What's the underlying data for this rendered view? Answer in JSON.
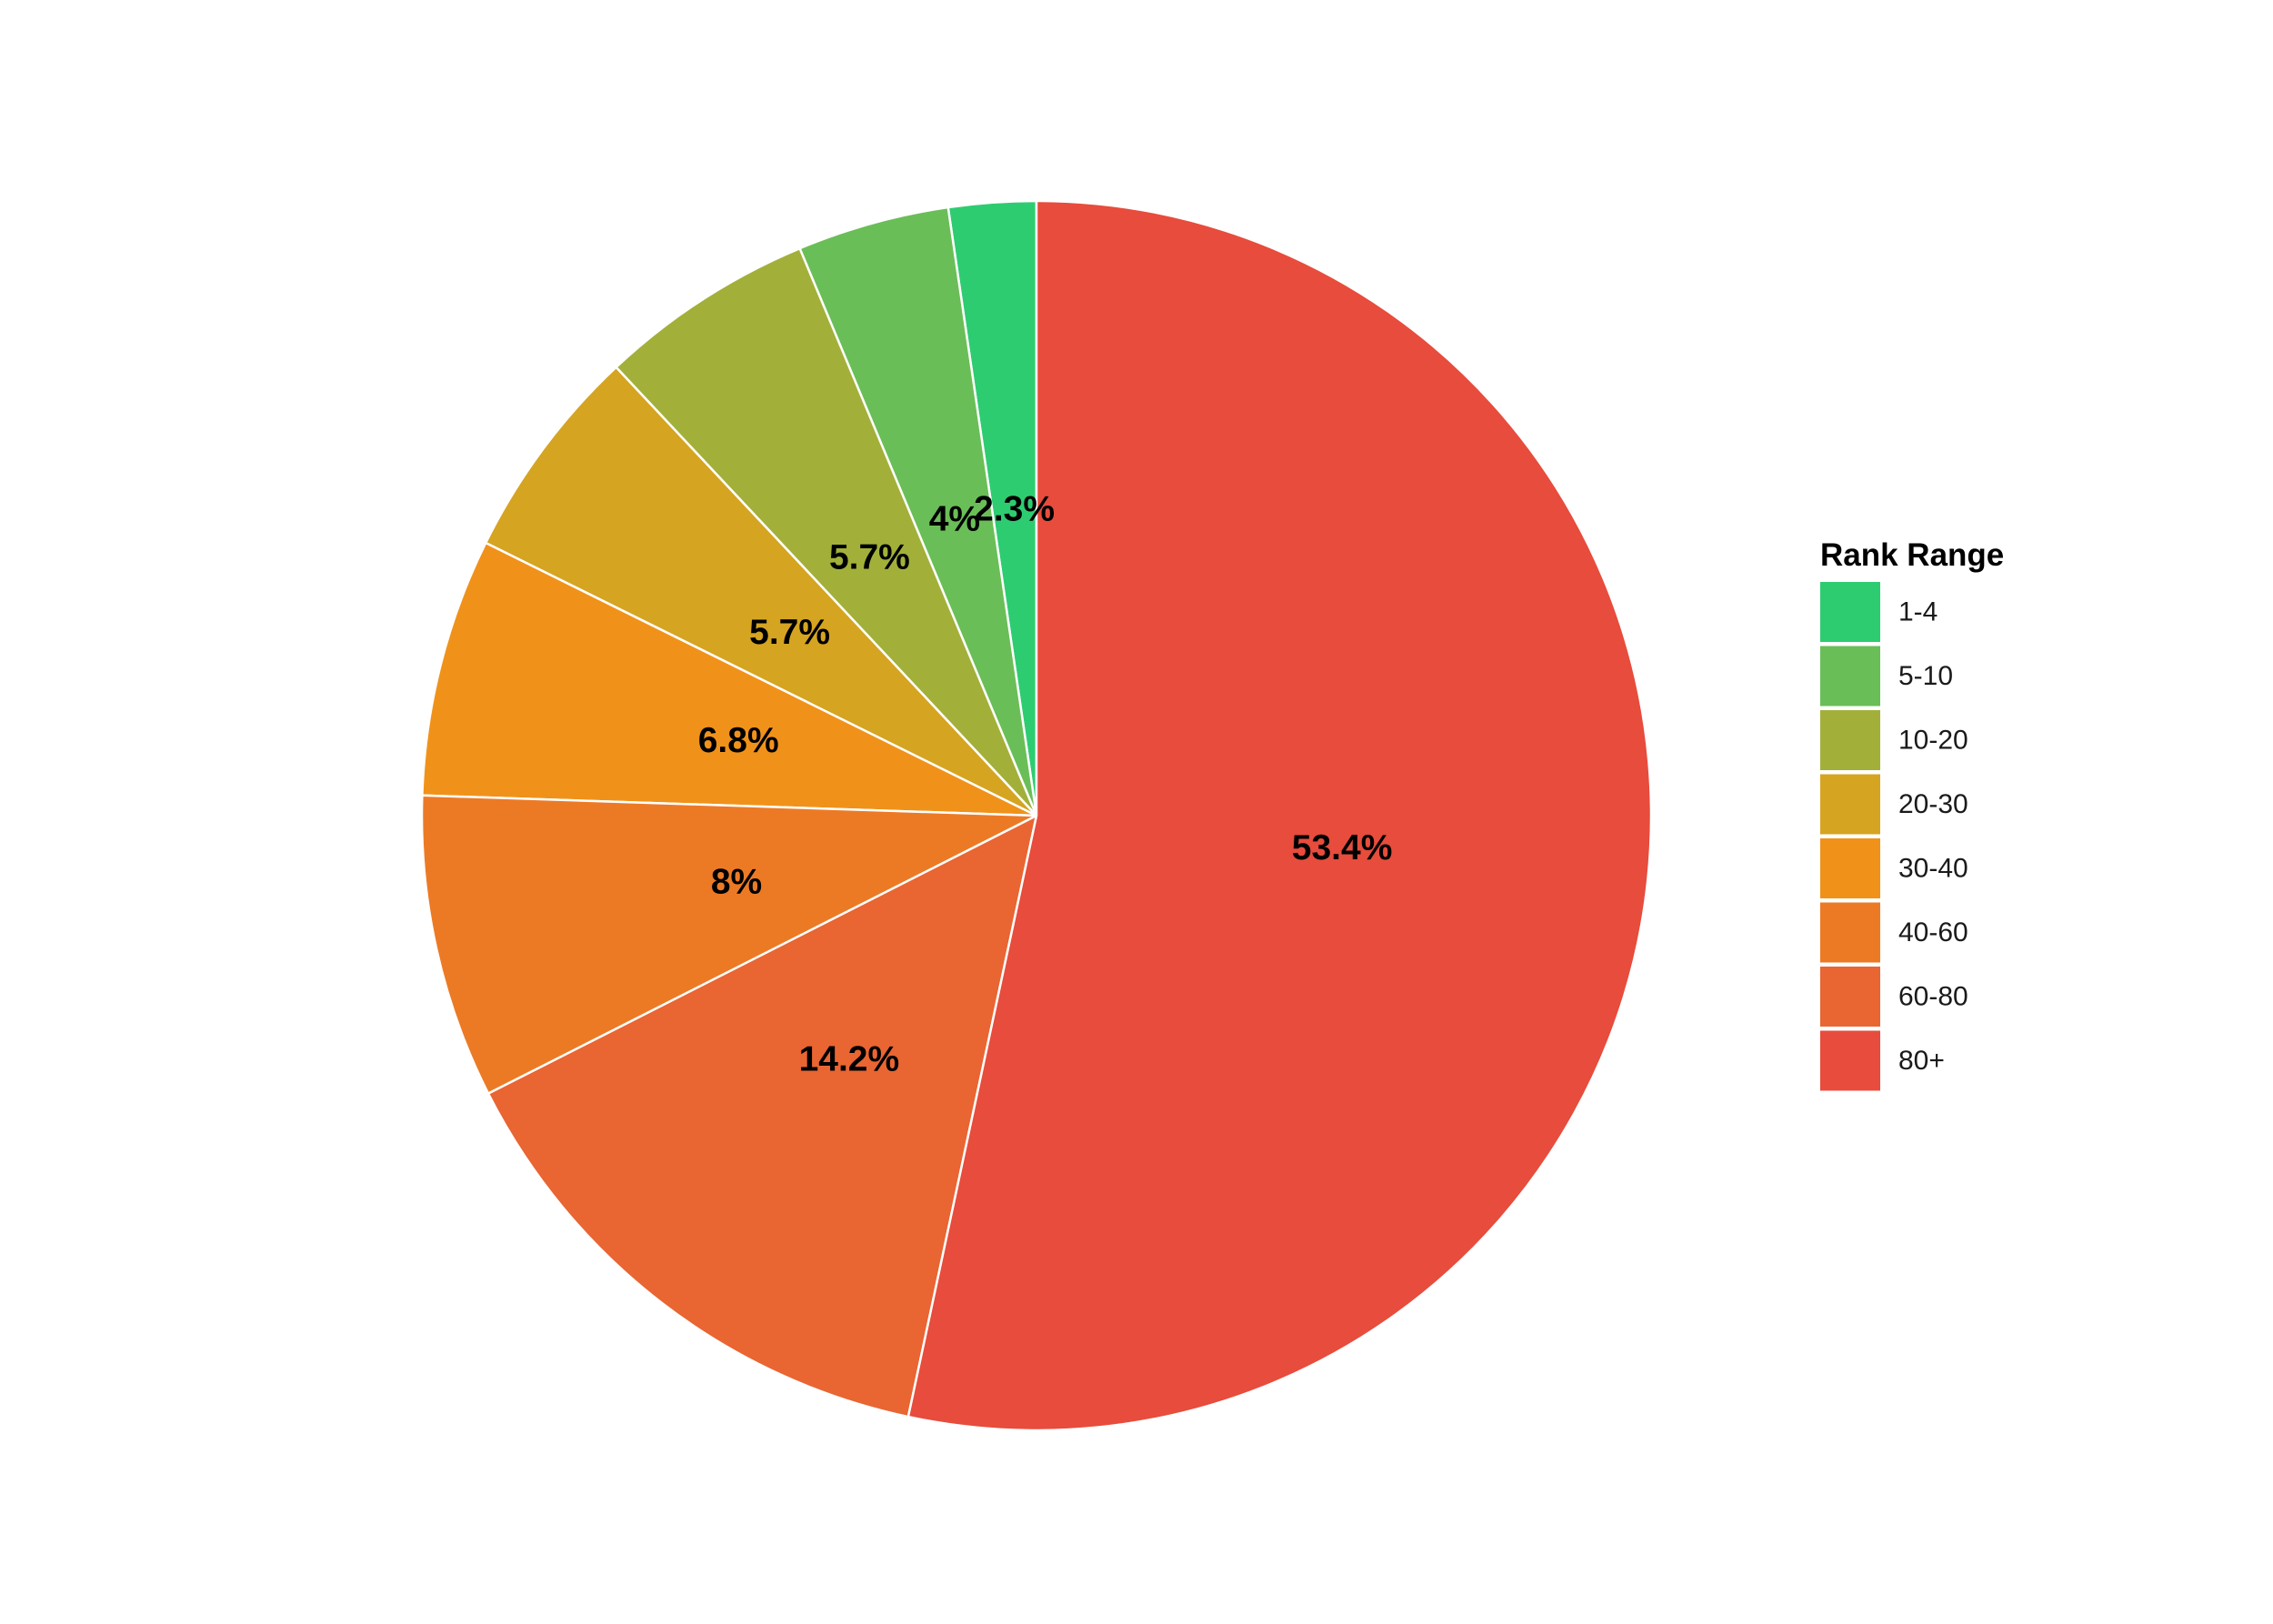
{
  "chart_data": {
    "type": "pie",
    "title": "",
    "legend_title": "Rank Range",
    "legend_position": "right",
    "start": "12 o'clock",
    "direction": "counter-clockwise",
    "slices": [
      {
        "label": "1-4",
        "value": 2.3,
        "display": "2.3%",
        "color": "#2ecc71"
      },
      {
        "label": "5-10",
        "value": 4.0,
        "display": "4%",
        "color": "#6abe57"
      },
      {
        "label": "10-20",
        "value": 5.7,
        "display": "5.7%",
        "color": "#a2b03a"
      },
      {
        "label": "20-30",
        "value": 5.7,
        "display": "5.7%",
        "color": "#d5a421"
      },
      {
        "label": "30-40",
        "value": 6.8,
        "display": "6.8%",
        "color": "#f0921a"
      },
      {
        "label": "40-60",
        "value": 8.0,
        "display": "8%",
        "color": "#ec7a25"
      },
      {
        "label": "60-80",
        "value": 14.2,
        "display": "14.2%",
        "color": "#e96532"
      },
      {
        "label": "80+",
        "value": 53.4,
        "display": "53.4%",
        "color": "#e74c3c"
      }
    ]
  }
}
